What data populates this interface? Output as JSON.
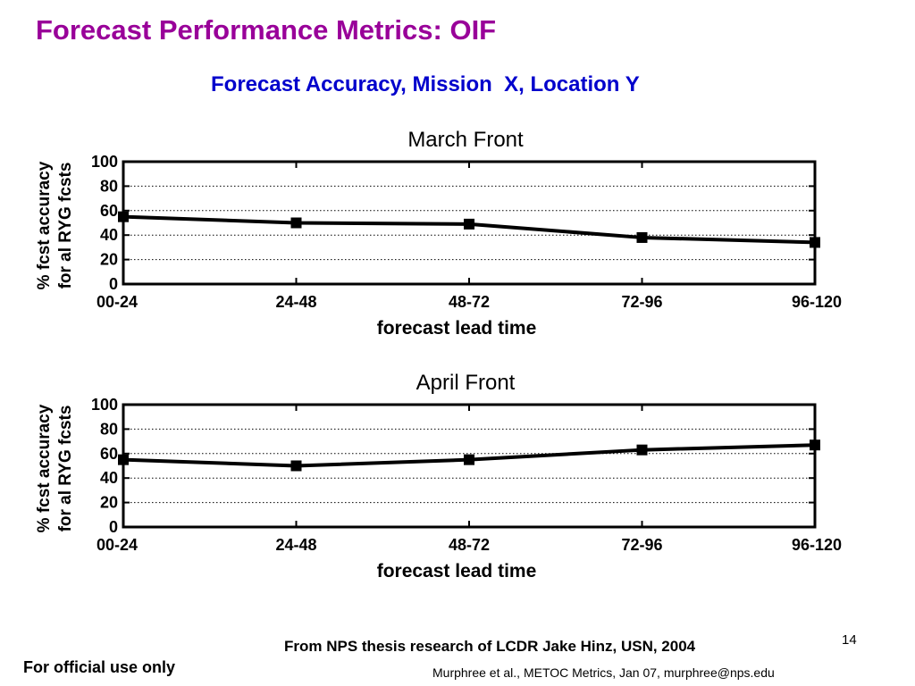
{
  "slide": {
    "title": "Forecast Performance Metrics: OIF",
    "subtitle": "Forecast Accuracy, Mission  X, Location Y",
    "credit": "From NPS thesis research of LCDR Jake Hinz, USN, 2004",
    "page_number": "14",
    "footer_left": "For official use only",
    "footer_right": "Murphree et al., METOC Metrics, Jan 07, murphree@nps.edu"
  },
  "chart_data": [
    {
      "type": "line",
      "title": "March Front",
      "xlabel": "forecast lead time",
      "ylabel": [
        "% fcst accuracy",
        "for al RYG fcsts"
      ],
      "categories": [
        "00-24",
        "24-48",
        "48-72",
        "72-96",
        "96-120"
      ],
      "series": [
        {
          "values": [
            55,
            50,
            49,
            38,
            34
          ]
        }
      ],
      "ylim": [
        0,
        100
      ],
      "yticks": [
        "0",
        "20",
        "40",
        "60",
        "80",
        "100"
      ],
      "grid": "horizontal dotted",
      "line_color": "#000000"
    },
    {
      "type": "line",
      "title": "April Front",
      "xlabel": "forecast lead time",
      "ylabel": [
        "% fcst accuracy",
        "for al RYG fcsts"
      ],
      "categories": [
        "00-24",
        "24-48",
        "48-72",
        "72-96",
        "96-120"
      ],
      "series": [
        {
          "values": [
            55,
            50,
            55,
            63,
            67
          ]
        }
      ],
      "ylim": [
        0,
        100
      ],
      "yticks": [
        "0",
        "20",
        "40",
        "60",
        "80",
        "100"
      ],
      "grid": "horizontal dotted",
      "line_color": "#000000"
    }
  ]
}
